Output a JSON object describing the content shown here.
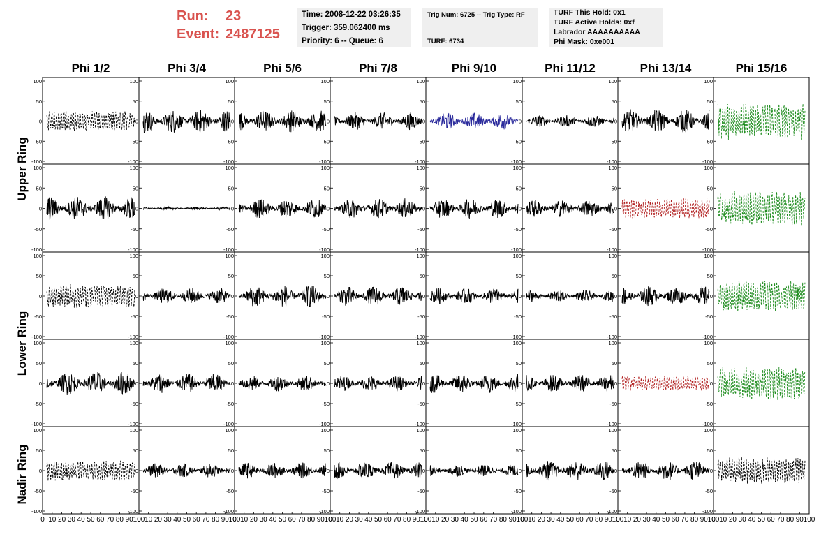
{
  "header": {
    "run_label": "Run:",
    "run_value": "23",
    "event_label": "Event:",
    "event_value": "2487125",
    "box1": [
      "Time: 2008-12-22 03:26:35",
      "Trigger: 359.062400 ms",
      "Priority: 6 -- Queue: 6"
    ],
    "box2": [
      "Trig Num: 6725 -- Trig Type: RF",
      "",
      "TURF: 6734"
    ],
    "box3": [
      "TURF This Hold: 0x1",
      "TURF Active Holds: 0xf",
      "Labrador AAAAAAAAAA",
      "Phi Mask: 0xe001"
    ]
  },
  "chart_data": {
    "type": "line",
    "columns": [
      "Phi 1/2",
      "Phi 3/4",
      "Phi 5/6",
      "Phi 7/8",
      "Phi 9/10",
      "Phi 11/12",
      "Phi 13/14",
      "Phi 15/16"
    ],
    "ring_labels": [
      "Upper Ring",
      "Lower Ring",
      "Nadir Ring"
    ],
    "rows_per_ring": [
      2,
      2,
      1
    ],
    "ylim": [
      -100,
      100
    ],
    "yticks": [
      -100,
      -50,
      0,
      50,
      100
    ],
    "xlim": [
      0,
      100
    ],
    "xticks": [
      "0",
      "10",
      "20",
      "30",
      "40",
      "50",
      "60",
      "70",
      "80",
      "90",
      "100"
    ],
    "colors": {
      "black": "#000000",
      "blue": "#2b2b9c",
      "red": "#b22222",
      "green": "#1e8c1e"
    },
    "panels": [
      [
        {
          "amp": 30,
          "color": "black",
          "dashed": true
        },
        {
          "amp": 30,
          "color": "black",
          "dashed": false
        },
        {
          "amp": 28,
          "color": "black",
          "dashed": false
        },
        {
          "amp": 22,
          "color": "black",
          "dashed": false
        },
        {
          "amp": 22,
          "color": "blue",
          "dashed": false
        },
        {
          "amp": 15,
          "color": "black",
          "dashed": false
        },
        {
          "amp": 30,
          "color": "black",
          "dashed": false
        },
        {
          "amp": 55,
          "color": "green",
          "dashed": true
        }
      ],
      [
        {
          "amp": 30,
          "color": "black",
          "dashed": false
        },
        {
          "amp": 4,
          "color": "black",
          "dashed": false
        },
        {
          "amp": 25,
          "color": "black",
          "dashed": false
        },
        {
          "amp": 25,
          "color": "black",
          "dashed": false
        },
        {
          "amp": 25,
          "color": "black",
          "dashed": false
        },
        {
          "amp": 22,
          "color": "black",
          "dashed": false
        },
        {
          "amp": 30,
          "color": "red",
          "dashed": true
        },
        {
          "amp": 50,
          "color": "green",
          "dashed": true
        }
      ],
      [
        {
          "amp": 35,
          "color": "black",
          "dashed": true
        },
        {
          "amp": 20,
          "color": "black",
          "dashed": false
        },
        {
          "amp": 28,
          "color": "black",
          "dashed": false
        },
        {
          "amp": 25,
          "color": "black",
          "dashed": false
        },
        {
          "amp": 20,
          "color": "black",
          "dashed": false
        },
        {
          "amp": 15,
          "color": "black",
          "dashed": false
        },
        {
          "amp": 25,
          "color": "black",
          "dashed": false
        },
        {
          "amp": 45,
          "color": "green",
          "dashed": true
        }
      ],
      [
        {
          "amp": 30,
          "color": "black",
          "dashed": false
        },
        {
          "amp": 25,
          "color": "black",
          "dashed": false
        },
        {
          "amp": 20,
          "color": "black",
          "dashed": false
        },
        {
          "amp": 20,
          "color": "black",
          "dashed": false
        },
        {
          "amp": 25,
          "color": "black",
          "dashed": false
        },
        {
          "amp": 22,
          "color": "black",
          "dashed": false
        },
        {
          "amp": 22,
          "color": "red",
          "dashed": true
        },
        {
          "amp": 50,
          "color": "green",
          "dashed": true
        }
      ],
      [
        {
          "amp": 30,
          "color": "black",
          "dashed": true
        },
        {
          "amp": 18,
          "color": "black",
          "dashed": false
        },
        {
          "amp": 20,
          "color": "black",
          "dashed": false
        },
        {
          "amp": 22,
          "color": "black",
          "dashed": false
        },
        {
          "amp": 15,
          "color": "black",
          "dashed": false
        },
        {
          "amp": 25,
          "color": "black",
          "dashed": false
        },
        {
          "amp": 25,
          "color": "black",
          "dashed": false
        },
        {
          "amp": 40,
          "color": "black",
          "dashed": true
        }
      ]
    ]
  }
}
